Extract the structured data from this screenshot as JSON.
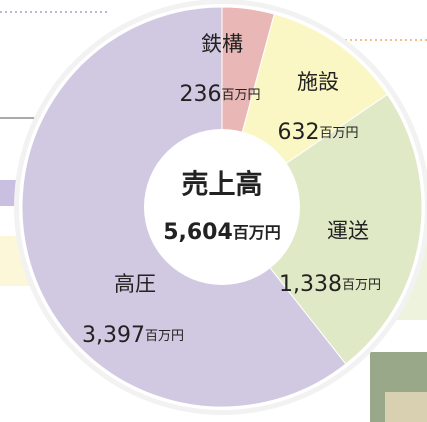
{
  "chart_data": {
    "type": "donut",
    "center_label": "売上高",
    "total": 5604,
    "total_label": "5,604百万円",
    "categories": [
      "鉄構",
      "施設",
      "運送",
      "高圧"
    ],
    "values": [
      236,
      632,
      1338,
      3397
    ],
    "value_labels": [
      "236百万円",
      "632百万円",
      "1,338百万円",
      "3,397百万円"
    ],
    "colors": [
      "#e9b7b6",
      "#fbf7c4",
      "#dfe9c5",
      "#d1c8e1"
    ]
  }
}
